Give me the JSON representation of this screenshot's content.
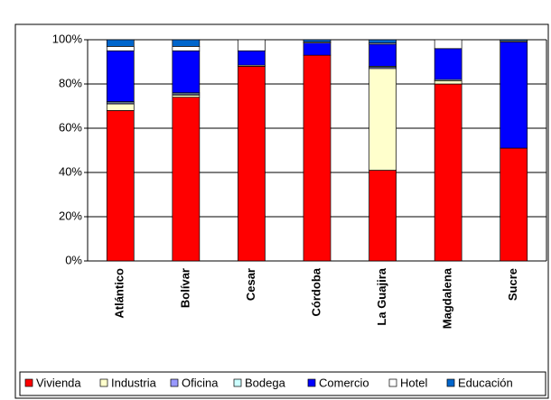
{
  "chart_data": {
    "type": "stacked_bar_percent",
    "categories": [
      "Atlántico",
      "Bolívar",
      "Cesar",
      "Córdoba",
      "La Guajira",
      "Magdalena",
      "Sucre"
    ],
    "series": [
      {
        "name": "Vivienda",
        "color": "#ff0000",
        "values": [
          68,
          74,
          88,
          93,
          41,
          80,
          51
        ]
      },
      {
        "name": "Industria",
        "color": "#ffffcc",
        "values": [
          3,
          1,
          0.5,
          0,
          46,
          1.5,
          0
        ]
      },
      {
        "name": "Oficina",
        "color": "#9999ff",
        "values": [
          0.5,
          0.5,
          0,
          0,
          0.5,
          0,
          0
        ]
      },
      {
        "name": "Bodega",
        "color": "#ccffff",
        "values": [
          0.5,
          0.5,
          0,
          0,
          0.5,
          0.5,
          0
        ]
      },
      {
        "name": "Comercio",
        "color": "#0000ff",
        "values": [
          23,
          19,
          6.5,
          5.5,
          10,
          14,
          48
        ]
      },
      {
        "name": "Hotel",
        "color": "#ffffff",
        "values": [
          2,
          2,
          5,
          0.5,
          0.5,
          4,
          0.5
        ]
      },
      {
        "name": "Educación",
        "color": "#0066cc",
        "values": [
          3,
          3,
          0,
          1,
          1.5,
          0,
          0.5
        ]
      }
    ],
    "ylim": [
      0,
      100
    ],
    "yticks": [
      {
        "value": 0,
        "label": "0%"
      },
      {
        "value": 20,
        "label": "20%"
      },
      {
        "value": 40,
        "label": "40%"
      },
      {
        "value": 60,
        "label": "60%"
      },
      {
        "value": 80,
        "label": "80%"
      },
      {
        "value": 100,
        "label": "100%"
      }
    ],
    "legend": "bottom"
  }
}
